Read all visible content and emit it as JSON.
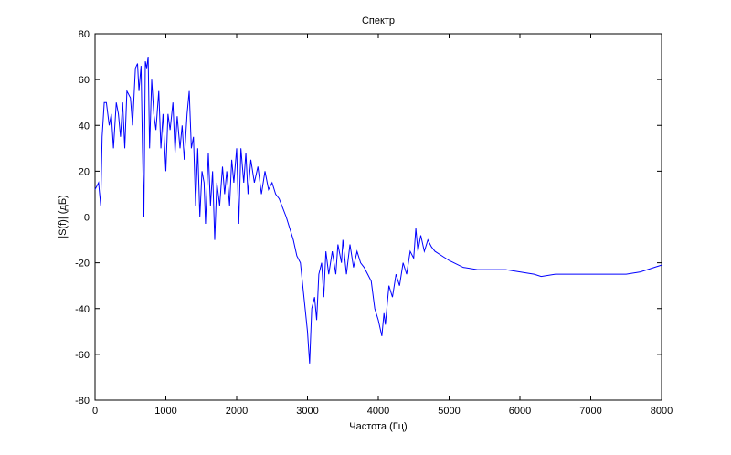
{
  "chart_data": {
    "type": "line",
    "title": "Спектр",
    "x_label": "Частота (Гц)",
    "y_label": "|S(f)| (дБ)",
    "x": [
      0,
      50,
      80,
      100,
      130,
      160,
      200,
      230,
      260,
      300,
      330,
      360,
      390,
      420,
      450,
      500,
      530,
      570,
      600,
      620,
      650,
      670,
      690,
      710,
      730,
      750,
      770,
      800,
      830,
      860,
      900,
      930,
      960,
      1000,
      1030,
      1060,
      1100,
      1130,
      1160,
      1200,
      1230,
      1260,
      1300,
      1330,
      1360,
      1390,
      1420,
      1450,
      1480,
      1510,
      1540,
      1560,
      1600,
      1630,
      1660,
      1690,
      1720,
      1760,
      1800,
      1830,
      1860,
      1900,
      1930,
      1960,
      2000,
      2030,
      2060,
      2100,
      2130,
      2160,
      2200,
      2250,
      2300,
      2350,
      2400,
      2450,
      2500,
      2550,
      2600,
      2700,
      2800,
      2850,
      2900,
      2950,
      3000,
      3030,
      3060,
      3100,
      3130,
      3160,
      3200,
      3230,
      3260,
      3300,
      3350,
      3400,
      3430,
      3480,
      3500,
      3550,
      3600,
      3650,
      3700,
      3750,
      3800,
      3850,
      3900,
      3950,
      4000,
      4050,
      4080,
      4100,
      4150,
      4200,
      4250,
      4300,
      4350,
      4400,
      4450,
      4500,
      4530,
      4560,
      4600,
      4650,
      4700,
      4750,
      4800,
      4900,
      5000,
      5200,
      5400,
      5600,
      5800,
      6000,
      6200,
      6300,
      6500,
      7000,
      7500,
      7700,
      7900,
      8000
    ],
    "series": [
      {
        "name": "|S(f)|",
        "color": "#0000ff",
        "values": [
          12,
          15,
          5,
          35,
          50,
          50,
          40,
          45,
          30,
          50,
          45,
          35,
          50,
          30,
          55,
          52,
          40,
          65,
          67,
          55,
          66,
          30,
          0,
          68,
          65,
          70,
          30,
          60,
          45,
          38,
          55,
          30,
          45,
          20,
          45,
          38,
          50,
          28,
          44,
          30,
          40,
          25,
          45,
          55,
          30,
          35,
          5,
          30,
          0,
          20,
          15,
          -3,
          28,
          5,
          20,
          -10,
          15,
          5,
          22,
          10,
          20,
          5,
          25,
          15,
          30,
          -3,
          30,
          15,
          28,
          10,
          25,
          15,
          22,
          10,
          20,
          12,
          15,
          10,
          8,
          0,
          -10,
          -17,
          -20,
          -35,
          -50,
          -64,
          -40,
          -35,
          -45,
          -25,
          -20,
          -35,
          -15,
          -25,
          -15,
          -25,
          -12,
          -20,
          -10,
          -25,
          -12,
          -22,
          -15,
          -20,
          -22,
          -25,
          -28,
          -40,
          -45,
          -52,
          -42,
          -47,
          -30,
          -35,
          -25,
          -30,
          -20,
          -25,
          -15,
          -18,
          -5,
          -15,
          -8,
          -15,
          -10,
          -13,
          -15,
          -17,
          -19,
          -22,
          -23,
          -23,
          -23,
          -24,
          -25,
          -26,
          -25,
          -25,
          -25,
          -24,
          -22,
          -21
        ]
      }
    ],
    "xlim": [
      0,
      8000
    ],
    "xticks": [
      0,
      1000,
      2000,
      3000,
      4000,
      5000,
      6000,
      7000,
      8000
    ],
    "ylim": [
      -80,
      80
    ],
    "yticks": [
      -80,
      -60,
      -40,
      -20,
      0,
      20,
      40,
      60,
      80
    ],
    "grid": false
  }
}
